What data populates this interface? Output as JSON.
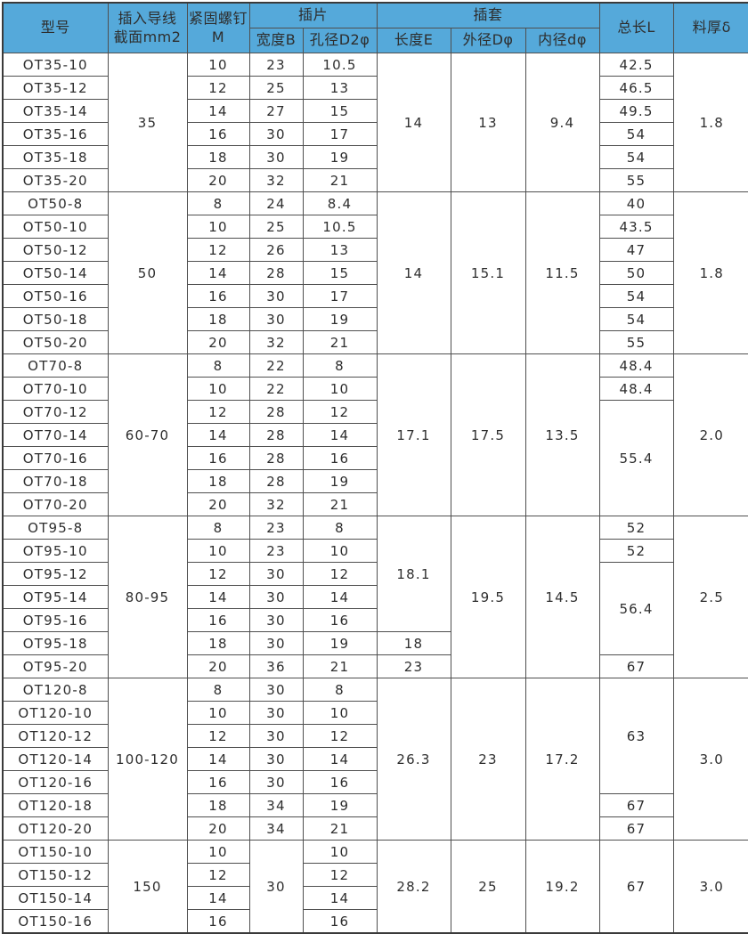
{
  "colors": {
    "header_bg": "#55a9da",
    "grid_line": "#4f4f4f",
    "frame": "#3a3a3a",
    "text": "#2e2e2e",
    "cell_bg": "#ffffff"
  },
  "chart_data": {
    "type": "table",
    "grid": true,
    "column_ids": [
      "model",
      "wire-section",
      "screw-m",
      "tab-width-b",
      "tab-hole-d2phi",
      "sleeve-length-e",
      "sleeve-outer-dphi",
      "sleeve-inner-dphi",
      "total-length-l",
      "thickness-delta"
    ],
    "columns": [
      "型号",
      "插入导线截面mm2",
      "紧固螺钉M",
      "插片宽度B",
      "插片孔径D2φ",
      "插套长度E",
      "插套外径Dφ",
      "插套内径dφ",
      "总长L",
      "料厚δ"
    ],
    "header_rows": [
      [
        {
          "name": "header-model",
          "text": "型号",
          "rs": 2
        },
        {
          "name": "header-wire-section",
          "text": "插入导线\n截面mm2",
          "rs": 2
        },
        {
          "name": "header-screw-m",
          "text": "紧固螺钉\nM",
          "rs": 2
        },
        {
          "name": "header-group-tab",
          "text": "插片",
          "cs": 2
        },
        {
          "name": "header-group-sleeve",
          "text": "插套",
          "cs": 3
        },
        {
          "name": "header-total-length",
          "text": "总长L",
          "rs": 2
        },
        {
          "name": "header-thickness",
          "text": "料厚δ",
          "rs": 2
        }
      ],
      [
        {
          "name": "header-tab-width-b",
          "text": "宽度B"
        },
        {
          "name": "header-tab-hole-d2phi",
          "text": "孔径D2φ"
        },
        {
          "name": "header-sleeve-length-e",
          "text": "长度E"
        },
        {
          "name": "header-sleeve-outer-dphi",
          "text": "外径Dφ"
        },
        {
          "name": "header-sleeve-inner-dphi",
          "text": "内径dφ"
        }
      ]
    ],
    "rows": [
      [
        "OT35-10",
        [
          "35",
          6
        ],
        "10",
        "23",
        "10.5",
        [
          "14",
          6
        ],
        [
          "13",
          6
        ],
        [
          "9.4",
          6
        ],
        "42.5",
        [
          "1.8",
          6
        ]
      ],
      [
        "OT35-12",
        null,
        "12",
        "25",
        "13",
        null,
        null,
        null,
        "46.5",
        null
      ],
      [
        "OT35-14",
        null,
        "14",
        "27",
        "15",
        null,
        null,
        null,
        "49.5",
        null
      ],
      [
        "OT35-16",
        null,
        "16",
        "30",
        "17",
        null,
        null,
        null,
        "54",
        null
      ],
      [
        "OT35-18",
        null,
        "18",
        "30",
        "19",
        null,
        null,
        null,
        "54",
        null
      ],
      [
        "OT35-20",
        null,
        "20",
        "32",
        "21",
        null,
        null,
        null,
        "55",
        null
      ],
      [
        "OT50-8",
        [
          "50",
          7
        ],
        "8",
        "24",
        "8.4",
        [
          "14",
          7
        ],
        [
          "15.1",
          7
        ],
        [
          "11.5",
          7
        ],
        "40",
        [
          "1.8",
          7
        ]
      ],
      [
        "OT50-10",
        null,
        "10",
        "25",
        "10.5",
        null,
        null,
        null,
        "43.5",
        null
      ],
      [
        "OT50-12",
        null,
        "12",
        "26",
        "13",
        null,
        null,
        null,
        "47",
        null
      ],
      [
        "OT50-14",
        null,
        "14",
        "28",
        "15",
        null,
        null,
        null,
        "50",
        null
      ],
      [
        "OT50-16",
        null,
        "16",
        "30",
        "17",
        null,
        null,
        null,
        "54",
        null
      ],
      [
        "OT50-18",
        null,
        "18",
        "30",
        "19",
        null,
        null,
        null,
        "54",
        null
      ],
      [
        "OT50-20",
        null,
        "20",
        "32",
        "21",
        null,
        null,
        null,
        "55",
        null
      ],
      [
        "OT70-8",
        [
          "60-70",
          7
        ],
        "8",
        "22",
        "8",
        [
          "17.1",
          7
        ],
        [
          "17.5",
          7
        ],
        [
          "13.5",
          7
        ],
        "48.4",
        [
          "2.0",
          7
        ]
      ],
      [
        "OT70-10",
        null,
        "10",
        "22",
        "10",
        null,
        null,
        null,
        "48.4",
        null
      ],
      [
        "OT70-12",
        null,
        "12",
        "28",
        "12",
        null,
        null,
        null,
        [
          "55.4",
          5
        ],
        null
      ],
      [
        "OT70-14",
        null,
        "14",
        "28",
        "14",
        null,
        null,
        null,
        null,
        null
      ],
      [
        "OT70-16",
        null,
        "16",
        "28",
        "16",
        null,
        null,
        null,
        null,
        null
      ],
      [
        "OT70-18",
        null,
        "18",
        "28",
        "19",
        null,
        null,
        null,
        null,
        null
      ],
      [
        "OT70-20",
        null,
        "20",
        "32",
        "21",
        null,
        null,
        null,
        null,
        null
      ],
      [
        "OT95-8",
        [
          "80-95",
          7
        ],
        "8",
        "23",
        "8",
        [
          "18.1",
          5
        ],
        [
          "19.5",
          7
        ],
        [
          "14.5",
          7
        ],
        "52",
        [
          "2.5",
          7
        ]
      ],
      [
        "OT95-10",
        null,
        "10",
        "23",
        "10",
        null,
        null,
        null,
        "52",
        null
      ],
      [
        "OT95-12",
        null,
        "12",
        "30",
        "12",
        null,
        null,
        null,
        [
          "56.4",
          4
        ],
        null
      ],
      [
        "OT95-14",
        null,
        "14",
        "30",
        "14",
        null,
        null,
        null,
        null,
        null
      ],
      [
        "OT95-16",
        null,
        "16",
        "30",
        "16",
        null,
        null,
        null,
        null,
        null
      ],
      [
        "OT95-18",
        null,
        "18",
        "30",
        "19",
        "18",
        null,
        null,
        null,
        null
      ],
      [
        "OT95-20",
        null,
        "20",
        "36",
        "21",
        "23",
        null,
        null,
        "67",
        null
      ],
      [
        "OT120-8",
        [
          "100-120",
          7
        ],
        "8",
        "30",
        "8",
        [
          "26.3",
          7
        ],
        [
          "23",
          7
        ],
        [
          "17.2",
          7
        ],
        [
          "63",
          5
        ],
        [
          "3.0",
          7
        ]
      ],
      [
        "OT120-10",
        null,
        "10",
        "30",
        "10",
        null,
        null,
        null,
        null,
        null
      ],
      [
        "OT120-12",
        null,
        "12",
        "30",
        "12",
        null,
        null,
        null,
        null,
        null
      ],
      [
        "OT120-14",
        null,
        "14",
        "30",
        "14",
        null,
        null,
        null,
        null,
        null
      ],
      [
        "OT120-16",
        null,
        "16",
        "30",
        "16",
        null,
        null,
        null,
        null,
        null
      ],
      [
        "OT120-18",
        null,
        "18",
        "34",
        "19",
        null,
        null,
        null,
        "67",
        null
      ],
      [
        "OT120-20",
        null,
        "20",
        "34",
        "21",
        null,
        null,
        null,
        "67",
        null
      ],
      [
        "OT150-10",
        [
          "150",
          4
        ],
        "10",
        [
          "30",
          4
        ],
        "10",
        [
          "28.2",
          4
        ],
        [
          "25",
          4
        ],
        [
          "19.2",
          4
        ],
        [
          "67",
          4
        ],
        [
          "3.0",
          4
        ]
      ],
      [
        "OT150-12",
        null,
        "12",
        null,
        "12",
        null,
        null,
        null,
        null,
        null
      ],
      [
        "OT150-14",
        null,
        "14",
        null,
        "14",
        null,
        null,
        null,
        null,
        null
      ],
      [
        "OT150-16",
        null,
        "16",
        null,
        "16",
        null,
        null,
        null,
        null,
        null
      ]
    ]
  }
}
